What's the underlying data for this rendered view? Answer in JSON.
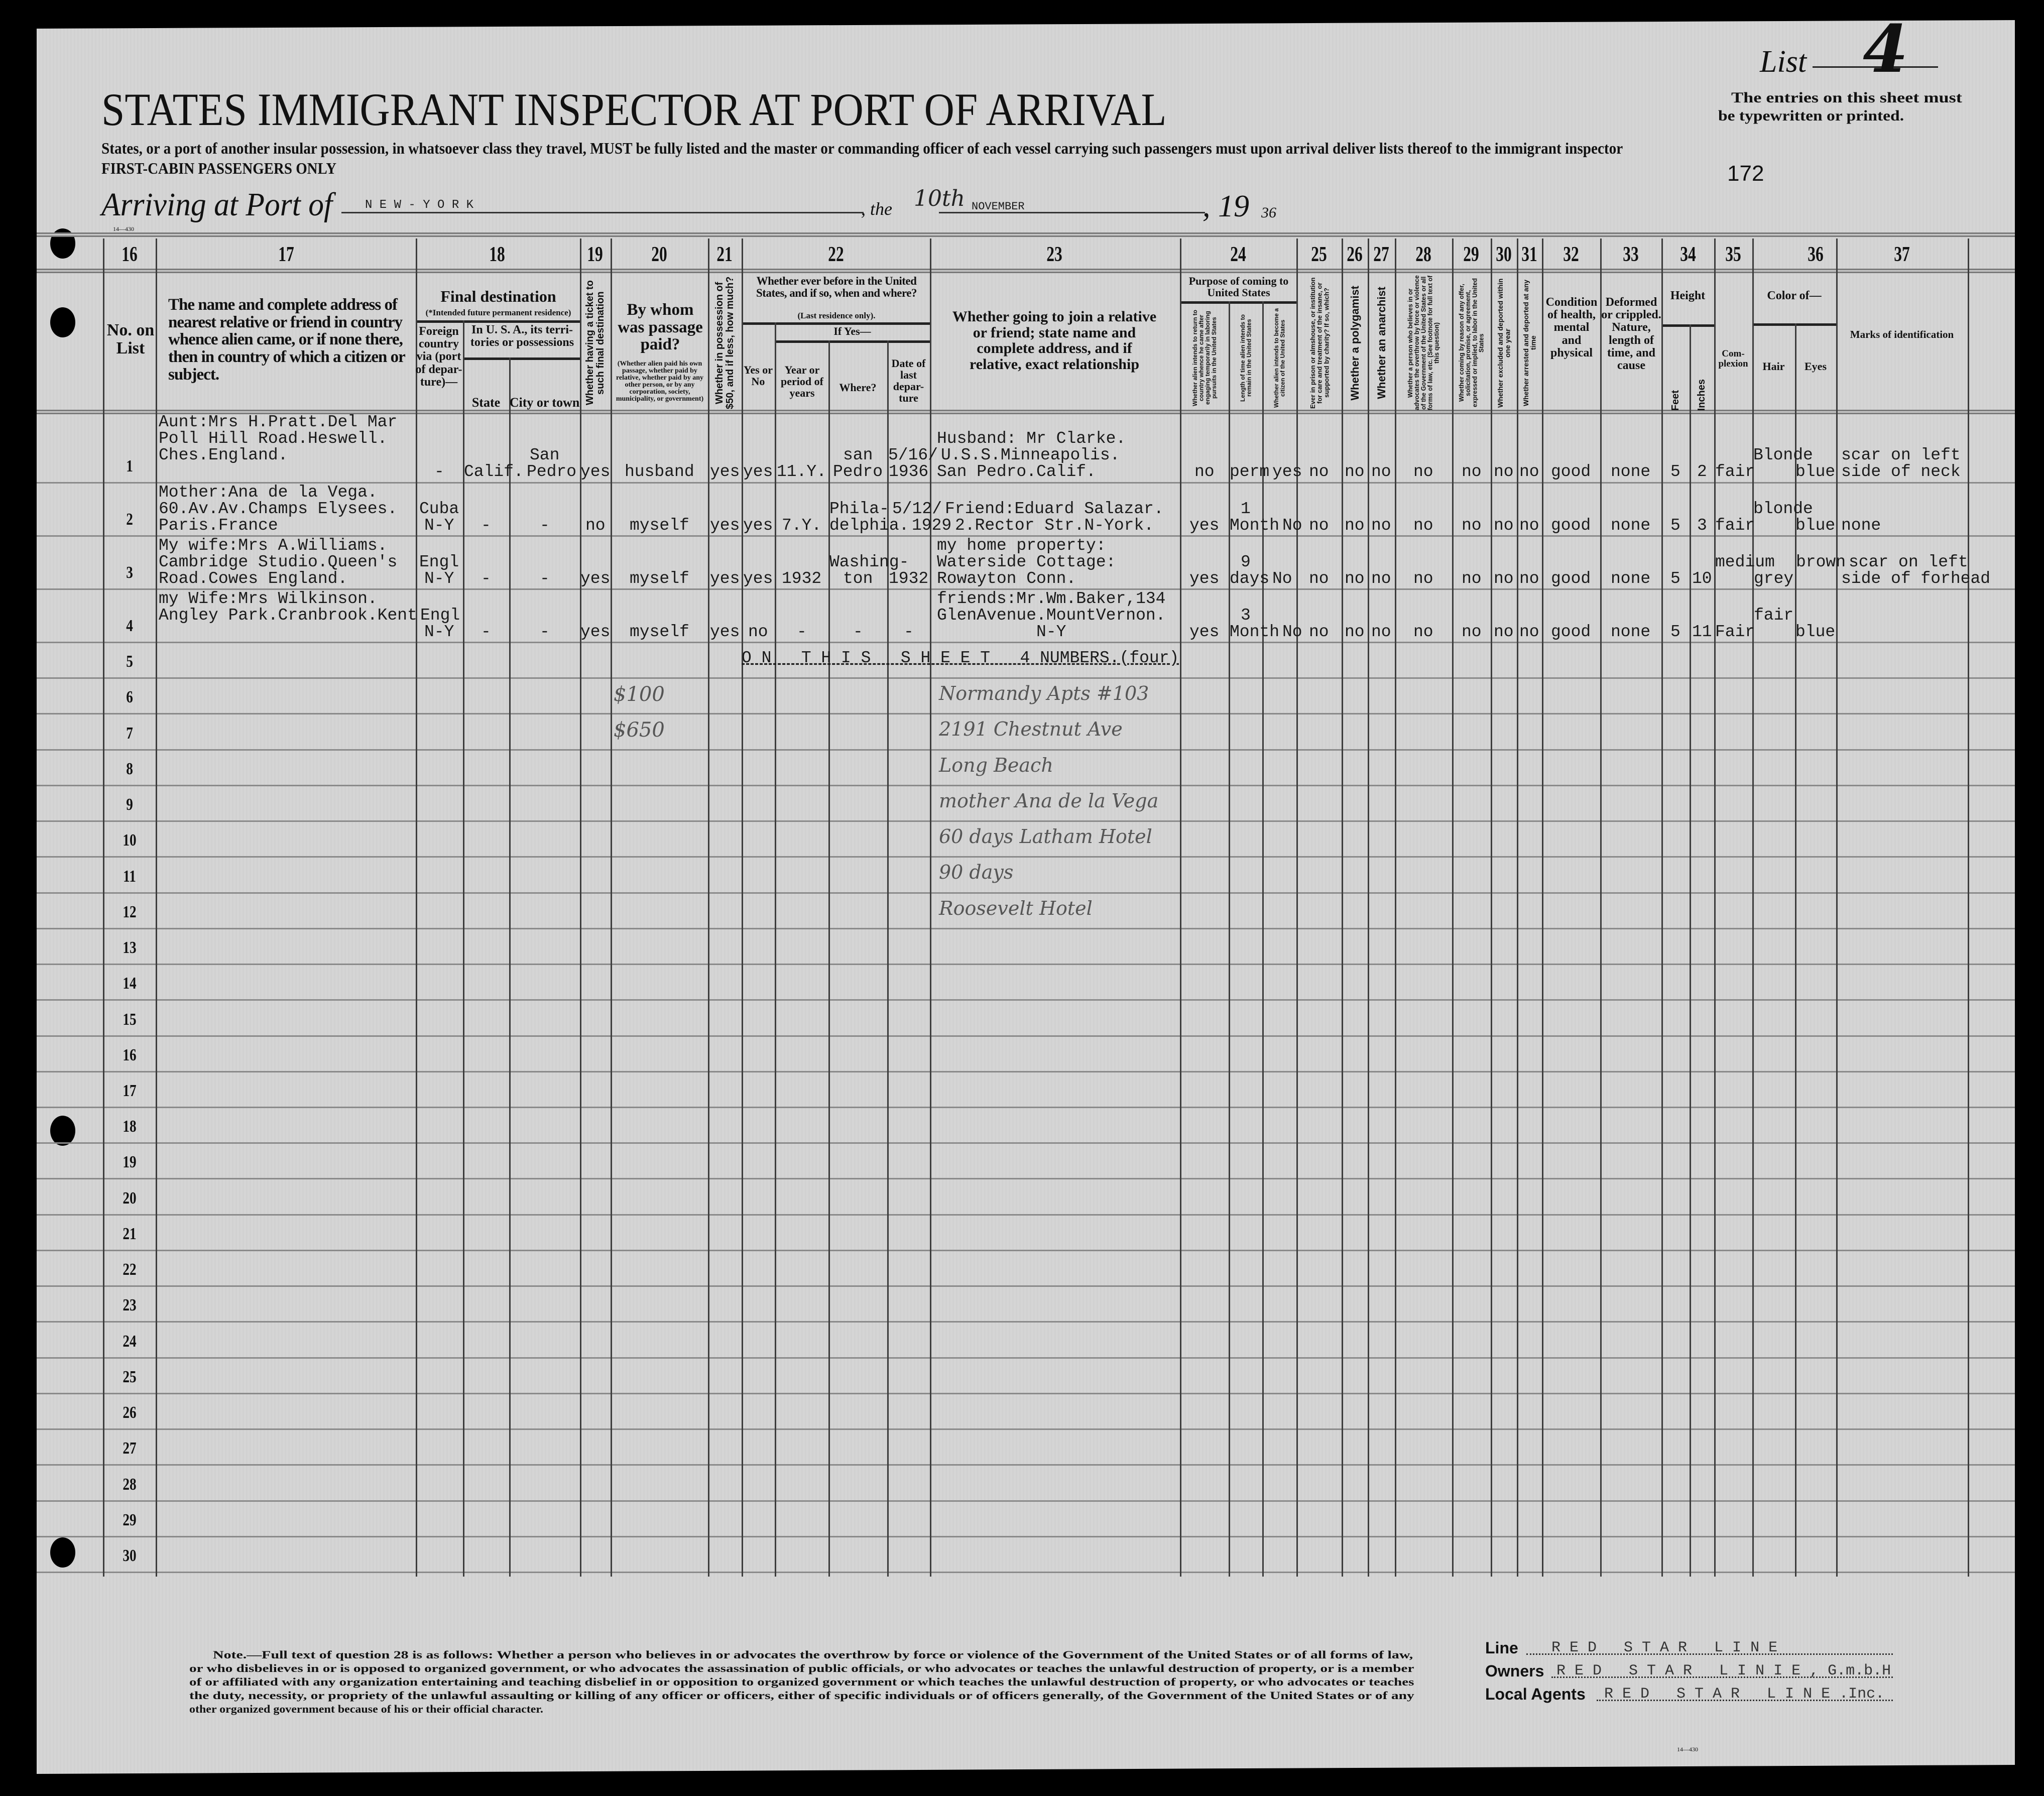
{
  "header": {
    "list_label": "List",
    "list_number": "4",
    "title": "STATES IMMIGRANT INSPECTOR AT PORT OF ARRIVAL",
    "instructions": "States, or a port of another insular possession, in whatsoever class they travel, MUST be fully listed and the master or commanding officer of each vessel carrying such passengers must upon arrival deliver lists thereof to the immigrant inspector",
    "class_note": "FIRST-CABIN PASSENGERS ONLY",
    "typewritten_note_1": "The entries on this sheet must",
    "typewritten_note_2": "be typewritten or printed.",
    "sheet_number": "172",
    "form_number": "14—430",
    "arriving_label": "Arriving at Port of",
    "port": "N E W - Y O R K",
    "the_label": ", the",
    "day": "10th",
    "month": "NOVEMBER",
    "year_label": ", 19",
    "year_suffix": "36"
  },
  "columns": {
    "numbers": [
      "16",
      "17",
      "18",
      "19",
      "20",
      "21",
      "22",
      "23",
      "24",
      "25",
      "26",
      "27",
      "28",
      "29",
      "30",
      "31",
      "32",
      "33",
      "34",
      "35",
      "36",
      "37"
    ],
    "no_on_list": "No. on List",
    "nearest_relative": "The name and complete address of nearest relative or friend in country whence alien came, or if none there, then in country of which a citizen or subject.",
    "final_destination": "Final destination",
    "final_destination_note": "(*Intended future permanent residence)",
    "foreign_country": "Foreign country via (port of depar-ture)—",
    "in_usa": "In U. S. A., its terri-tories or possessions",
    "state": "State",
    "city": "City or town",
    "ticket": "Whether having a ticket to such final destination",
    "passage_paid": "By whom was passage paid?",
    "passage_paid_note": "(Whether alien paid his own passage, whether paid by relative, whether paid by any other person, or by any corporation, society, municipality, or government)",
    "money": "Whether in possession of $50, and if less, how much?",
    "ever_before": "Whether ever before in the United States, and if so, when and where?",
    "last_residence": "(Last residence only).",
    "if_yes": "If Yes—",
    "yes_no": "Yes or No",
    "year_period": "Year or period of years",
    "where": "Where?",
    "date_departure": "Date of last depar-ture",
    "join_relative": "Whether going to join a relative or friend; state name and complete address, and if relative, exact relationship",
    "purpose": "Purpose of coming to United States",
    "purpose_return": "Whether alien intends to return to country whence he came after engaging temporarily in laboring pursuits in the United States",
    "purpose_length": "Length of time alien intends to remain in the United States",
    "purpose_citizen": "Whether alien intends to become a citizen of the United States",
    "prison": "Ever in prison or almshouse, or institution for care and treatment of the insane, or supported by charity? If so, which?",
    "polygamist": "Whether a polygamist",
    "anarchist": "Whether an anarchist",
    "overthrow": "Whether a person who believes in or advocates the overthrow by force or violence of the Government of the United States or all forms of law, etc. (See footnote for full text of this question)",
    "labor": "Whether coming by reason of any offer, solicitation, promise, or agreement, expressed or implied, to labor in the United States",
    "excluded": "Whether excluded and deported within one year",
    "arrested": "Whether arrested and deported at any time",
    "health": "Condition of health, mental and physical",
    "deformed": "Deformed or crippled. Nature, length of time, and cause",
    "height": "Height",
    "feet": "Feet",
    "inches": "Inches",
    "complexion": "Com-plexion",
    "color_of": "Color of—",
    "hair": "Hair",
    "eyes": "Eyes",
    "marks": "Marks of identification"
  },
  "row_numbers": [
    "1",
    "2",
    "3",
    "4",
    "5",
    "6",
    "7",
    "8",
    "9",
    "10",
    "11",
    "12",
    "13",
    "14",
    "15",
    "16",
    "17",
    "18",
    "19",
    "20",
    "21",
    "22",
    "23",
    "24",
    "25",
    "26",
    "27",
    "28",
    "29",
    "30"
  ],
  "rows": [
    {
      "c17": [
        "Aunt:Mrs H.Pratt.Del Mar",
        "Poll Hill Road.Heswell.",
        "Ches.England.",
        ""
      ],
      "c18f": [
        "-"
      ],
      "state": [
        "Calif."
      ],
      "city": [
        "San",
        "Pedro"
      ],
      "c19": [
        "yes"
      ],
      "c20": [
        "husband"
      ],
      "c21": [
        "yes"
      ],
      "c22yn": [
        "yes"
      ],
      "year": [
        "11.Y."
      ],
      "where": [
        "san",
        "Pedro"
      ],
      "date": [
        "5/16/",
        "1936"
      ],
      "c23": [
        "Husband: Mr Clarke.",
        "U.S.S.Minneapolis.",
        "San Pedro.Calif."
      ],
      "a24": [
        "no"
      ],
      "b24": [
        "perm"
      ],
      "c24": [
        "yes"
      ],
      "c25": [
        "no"
      ],
      "c26": [
        "no"
      ],
      "c27": [
        "no"
      ],
      "c28": [
        "no"
      ],
      "c29": [
        "no"
      ],
      "c30": [
        "no"
      ],
      "c31": [
        "no"
      ],
      "c32": [
        "good"
      ],
      "c33": [
        "none"
      ],
      "feet": [
        "5"
      ],
      "inches": [
        "2"
      ],
      "c35": [
        "fair"
      ],
      "hair": [
        "Blonde",
        ""
      ],
      "eyes": [
        "blue"
      ],
      "c37": [
        "scar on left",
        "side of neck"
      ]
    },
    {
      "c17": [
        "Mother:Ana de la Vega.",
        "60.Av.Av.Champs Elysees.",
        "Paris.France"
      ],
      "c18f": [
        "Cuba",
        "N-Y"
      ],
      "state": [
        "-"
      ],
      "city": [
        "-"
      ],
      "c19": [
        "no"
      ],
      "c20": [
        "myself"
      ],
      "c21": [
        "yes"
      ],
      "c22yn": [
        "yes"
      ],
      "year": [
        "7.Y."
      ],
      "where": [
        "Phila-",
        "delphia."
      ],
      "date": [
        "5/12/",
        "1929"
      ],
      "c23": [
        "Friend:Eduard Salazar.",
        "2.Rector Str.N-York."
      ],
      "a24": [
        "yes"
      ],
      "b24": [
        "1",
        "Month"
      ],
      "c24": [
        "No"
      ],
      "c25": [
        "no"
      ],
      "c26": [
        "no"
      ],
      "c27": [
        "no"
      ],
      "c28": [
        "no"
      ],
      "c29": [
        "no"
      ],
      "c30": [
        "no"
      ],
      "c31": [
        "no"
      ],
      "c32": [
        "good"
      ],
      "c33": [
        "none"
      ],
      "feet": [
        "5"
      ],
      "inches": [
        "3"
      ],
      "c35": [
        "fair"
      ],
      "hair": [
        "blonde",
        ""
      ],
      "eyes": [
        "blue"
      ],
      "c37": [
        "none"
      ]
    },
    {
      "c17": [
        "My wife:Mrs A.Williams.",
        "Cambridge Studio.Queen's",
        "Road.Cowes England."
      ],
      "c18f": [
        "Engl",
        "N-Y"
      ],
      "state": [
        "-"
      ],
      "city": [
        "-"
      ],
      "c19": [
        "yes"
      ],
      "c20": [
        "myself"
      ],
      "c21": [
        "yes"
      ],
      "c22yn": [
        "yes"
      ],
      "year": [
        "1932"
      ],
      "where": [
        "Washing-",
        "ton"
      ],
      "date": [
        "1932"
      ],
      "c23": [
        "my home property:",
        "Waterside Cottage:",
        "Rowayton Conn."
      ],
      "a24": [
        "yes"
      ],
      "b24": [
        "9",
        "days"
      ],
      "c24": [
        "No"
      ],
      "c25": [
        "no"
      ],
      "c26": [
        "no"
      ],
      "c27": [
        "no"
      ],
      "c28": [
        "no"
      ],
      "c29": [
        "no"
      ],
      "c30": [
        "no"
      ],
      "c31": [
        "no"
      ],
      "c32": [
        "good"
      ],
      "c33": [
        "none"
      ],
      "feet": [
        "5"
      ],
      "inches": [
        "10"
      ],
      "c35": [
        "medium",
        ""
      ],
      "hair": [
        "grey"
      ],
      "eyes": [
        "brown",
        ""
      ],
      "c37": [
        "scar on left",
        "side of forhead"
      ]
    },
    {
      "c17": [
        "my Wife:Mrs Wilkinson.",
        "Angley Park.Cranbrook.Kent",
        ""
      ],
      "c18f": [
        "Engl",
        "N-Y"
      ],
      "state": [
        "-"
      ],
      "city": [
        "-"
      ],
      "c19": [
        "yes"
      ],
      "c20": [
        "myself"
      ],
      "c21": [
        "yes"
      ],
      "c22yn": [
        "no"
      ],
      "year": [
        "-"
      ],
      "where": [
        "-"
      ],
      "date": [
        "-"
      ],
      "c23": [
        "friends:Mr.Wm.Baker,134",
        "GlenAvenue.MountVernon.",
        "          N-Y"
      ],
      "a24": [
        "yes"
      ],
      "b24": [
        "3",
        "Month"
      ],
      "c24": [
        "No"
      ],
      "c25": [
        "no"
      ],
      "c26": [
        "no"
      ],
      "c27": [
        "no"
      ],
      "c28": [
        "no"
      ],
      "c29": [
        "no"
      ],
      "c30": [
        "no"
      ],
      "c31": [
        "no"
      ],
      "c32": [
        "good"
      ],
      "c33": [
        "none"
      ],
      "feet": [
        "5"
      ],
      "inches": [
        "11"
      ],
      "c35": [
        "Fair"
      ],
      "hair": [
        "fair",
        ""
      ],
      "eyes": [
        "blue"
      ],
      "c37": []
    }
  ],
  "summary": "O N   T H I S   S H E E T   4 NUMBERS.(four)",
  "handwritten_notes": [
    "$100",
    "$650",
    "Normandy Apts #103",
    "2191 Chestnut Ave",
    "Long Beach",
    "mother Ana de la Vega",
    "60 days Latham Hotel",
    "90 days",
    "Roosevelt Hotel"
  ],
  "footer": {
    "note_lines": [
      "Note.—Full text of question 28 is as follows: Whether a person who believes in or advocates the overthrow by force or violence of the Government of the United States or of all forms of law,",
      "or who disbelieves in or is opposed to organized government, or who advocates the assassination of public officials, or who advocates or teaches the unlawful destruction of property, or is a member",
      "of or affiliated with any organization entertaining and teaching disbelief in or opposition to organized government or which teaches the unlawful destruction of property, or who advocates or teaches",
      "the duty, necessity, or propriety of the unlawful assaulting or killing of any officer or officers, either of specific individuals or of officers generally, of the Government of the United States or of any",
      "other organized government because of his or their official character."
    ],
    "form_number": "14—430",
    "line_label": "Line",
    "line_value": "R E D   S T A R   L I N E",
    "owners_label": "Owners",
    "owners_value": "R E D   S T A R   L I N I E , G.m.b.H",
    "agents_label": "Local Agents",
    "agents_value": "R E D   S T A R   L I N E .Inc."
  }
}
